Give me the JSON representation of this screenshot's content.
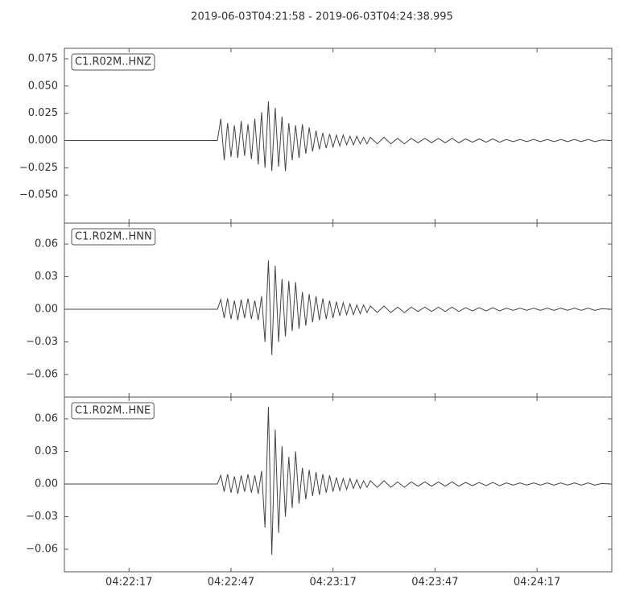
{
  "title": "2019-06-03T04:21:58  -  2019-06-03T04:24:38.995",
  "chart_data": [
    {
      "type": "line",
      "label": "C1.R02M..HNZ",
      "color": "#444444",
      "xlim": [
        "04:21:58",
        "04:24:38.995"
      ],
      "ylim": [
        -0.0757,
        0.0846
      ],
      "yticks": [
        {
          "value": -0.05,
          "label": "−0.050"
        },
        {
          "value": -0.025,
          "label": "−0.025"
        },
        {
          "value": 0,
          "label": "0.000"
        },
        {
          "value": 0.025,
          "label": "0.025"
        },
        {
          "value": 0.05,
          "label": "0.050"
        },
        {
          "value": 0.075,
          "label": "0.075"
        }
      ],
      "x": [
        "04:21:58",
        "04:22:43",
        "04:22:44",
        "04:22:45",
        "04:22:46",
        "04:22:47",
        "04:22:48",
        "04:22:49",
        "04:22:50",
        "04:22:51",
        "04:22:52",
        "04:22:53",
        "04:22:54",
        "04:22:55",
        "04:22:56",
        "04:22:57",
        "04:22:58",
        "04:22:59",
        "04:23:00",
        "04:23:01",
        "04:23:02",
        "04:23:03",
        "04:23:04",
        "04:23:05",
        "04:23:06",
        "04:23:07",
        "04:23:08",
        "04:23:09",
        "04:23:10",
        "04:23:11",
        "04:23:12",
        "04:23:13",
        "04:23:14",
        "04:23:15",
        "04:23:16",
        "04:23:17",
        "04:23:18",
        "04:23:19",
        "04:23:20",
        "04:23:21",
        "04:23:22",
        "04:23:23",
        "04:23:24",
        "04:23:25",
        "04:23:26",
        "04:23:27",
        "04:23:28",
        "04:23:30",
        "04:23:32",
        "04:23:34",
        "04:23:36",
        "04:23:38",
        "04:23:40",
        "04:23:42",
        "04:23:44",
        "04:23:46",
        "04:23:48",
        "04:23:50",
        "04:23:52",
        "04:23:54",
        "04:23:56",
        "04:23:58",
        "04:24:00",
        "04:24:02",
        "04:24:04",
        "04:24:06",
        "04:24:08",
        "04:24:10",
        "04:24:12",
        "04:24:14",
        "04:24:16",
        "04:24:18",
        "04:24:20",
        "04:24:22",
        "04:24:24",
        "04:24:26",
        "04:24:28",
        "04:24:30",
        "04:24:32",
        "04:24:34",
        "04:24:36",
        "04:24:38.995"
      ],
      "values": [
        0,
        0,
        0.02,
        -0.018,
        0.016,
        -0.015,
        0.014,
        -0.016,
        0.018,
        -0.014,
        0.015,
        -0.017,
        0.02,
        -0.022,
        0.026,
        -0.025,
        0.036,
        -0.028,
        0.03,
        -0.024,
        0.022,
        -0.028,
        0.016,
        -0.018,
        0.014,
        -0.016,
        0.015,
        -0.012,
        0.012,
        -0.01,
        0.009,
        -0.008,
        0.007,
        -0.007,
        0.006,
        -0.006,
        0.005,
        -0.005,
        0.005,
        -0.004,
        0.004,
        -0.004,
        0.004,
        -0.003,
        0.003,
        -0.003,
        0.003,
        -0.003,
        0.003,
        -0.003,
        0.002,
        -0.003,
        0.002,
        -0.002,
        0.002,
        -0.002,
        0.002,
        -0.002,
        0.002,
        -0.002,
        0.0015,
        -0.0015,
        0.0015,
        -0.0015,
        0.0015,
        -0.0015,
        0.001,
        -0.001,
        0.001,
        -0.001,
        0.001,
        -0.001,
        0.001,
        -0.001,
        0.001,
        -0.001,
        0.001,
        -0.001,
        0.001,
        -0.001,
        0.0005,
        0
      ]
    },
    {
      "type": "line",
      "label": "C1.R02M..HNN",
      "color": "#444444",
      "xlim": [
        "04:21:58",
        "04:24:38.995"
      ],
      "ylim": [
        -0.0807,
        0.0793
      ],
      "yticks": [
        {
          "value": -0.06,
          "label": "−0.06"
        },
        {
          "value": -0.03,
          "label": "−0.03"
        },
        {
          "value": 0,
          "label": "0.00"
        },
        {
          "value": 0.03,
          "label": "0.03"
        },
        {
          "value": 0.06,
          "label": "0.06"
        }
      ],
      "x": [
        "04:21:58",
        "04:22:43",
        "04:22:44",
        "04:22:45",
        "04:22:46",
        "04:22:47",
        "04:22:48",
        "04:22:49",
        "04:22:50",
        "04:22:51",
        "04:22:52",
        "04:22:53",
        "04:22:54",
        "04:22:55",
        "04:22:56",
        "04:22:57",
        "04:22:58",
        "04:22:59",
        "04:23:00",
        "04:23:01",
        "04:23:02",
        "04:23:03",
        "04:23:04",
        "04:23:05",
        "04:23:06",
        "04:23:07",
        "04:23:08",
        "04:23:09",
        "04:23:10",
        "04:23:11",
        "04:23:12",
        "04:23:13",
        "04:23:14",
        "04:23:15",
        "04:23:16",
        "04:23:17",
        "04:23:18",
        "04:23:19",
        "04:23:20",
        "04:23:21",
        "04:23:22",
        "04:23:23",
        "04:23:24",
        "04:23:25",
        "04:23:26",
        "04:23:27",
        "04:23:28",
        "04:23:30",
        "04:23:32",
        "04:23:34",
        "04:23:36",
        "04:23:38",
        "04:23:40",
        "04:23:42",
        "04:23:44",
        "04:23:46",
        "04:23:48",
        "04:23:50",
        "04:23:52",
        "04:23:54",
        "04:23:56",
        "04:23:58",
        "04:24:00",
        "04:24:02",
        "04:24:04",
        "04:24:06",
        "04:24:08",
        "04:24:10",
        "04:24:12",
        "04:24:14",
        "04:24:16",
        "04:24:18",
        "04:24:20",
        "04:24:22",
        "04:24:24",
        "04:24:26",
        "04:24:28",
        "04:24:30",
        "04:24:32",
        "04:24:34",
        "04:24:36",
        "04:24:38.995"
      ],
      "values": [
        0,
        0,
        0.009,
        -0.008,
        0.01,
        -0.009,
        0.008,
        -0.01,
        0.009,
        -0.008,
        0.01,
        -0.009,
        0.008,
        -0.01,
        0.012,
        -0.03,
        0.045,
        -0.042,
        0.04,
        -0.03,
        0.028,
        -0.025,
        0.026,
        -0.02,
        0.025,
        -0.018,
        0.016,
        -0.015,
        0.014,
        -0.012,
        0.012,
        -0.01,
        0.01,
        -0.009,
        0.008,
        -0.008,
        0.007,
        -0.006,
        0.006,
        -0.005,
        0.005,
        -0.005,
        0.004,
        -0.004,
        0.004,
        -0.003,
        0.003,
        -0.003,
        0.003,
        -0.003,
        0.002,
        -0.003,
        0.002,
        -0.002,
        0.002,
        -0.002,
        0.002,
        -0.002,
        0.002,
        -0.002,
        0.0015,
        -0.0015,
        0.0015,
        -0.0015,
        0.0015,
        -0.0015,
        0.001,
        -0.001,
        0.001,
        -0.001,
        0.001,
        -0.001,
        0.001,
        -0.001,
        0.001,
        -0.001,
        0.001,
        -0.001,
        0.001,
        -0.001,
        0.0005,
        0
      ]
    },
    {
      "type": "line",
      "label": "C1.R02M..HNE",
      "color": "#444444",
      "xlim": [
        "04:21:58",
        "04:24:38.995"
      ],
      "ylim": [
        -0.0807,
        0.08
      ],
      "yticks": [
        {
          "value": -0.06,
          "label": "−0.06"
        },
        {
          "value": -0.03,
          "label": "−0.03"
        },
        {
          "value": 0,
          "label": "0.00"
        },
        {
          "value": 0.03,
          "label": "0.03"
        },
        {
          "value": 0.06,
          "label": "0.06"
        }
      ],
      "xticks": [
        "04:22:17",
        "04:22:47",
        "04:23:17",
        "04:23:47",
        "04:24:17"
      ],
      "x": [
        "04:21:58",
        "04:22:43",
        "04:22:44",
        "04:22:45",
        "04:22:46",
        "04:22:47",
        "04:22:48",
        "04:22:49",
        "04:22:50",
        "04:22:51",
        "04:22:52",
        "04:22:53",
        "04:22:54",
        "04:22:55",
        "04:22:56",
        "04:22:57",
        "04:22:58",
        "04:22:59",
        "04:23:00",
        "04:23:01",
        "04:23:02",
        "04:23:03",
        "04:23:04",
        "04:23:05",
        "04:23:06",
        "04:23:07",
        "04:23:08",
        "04:23:09",
        "04:23:10",
        "04:23:11",
        "04:23:12",
        "04:23:13",
        "04:23:14",
        "04:23:15",
        "04:23:16",
        "04:23:17",
        "04:23:18",
        "04:23:19",
        "04:23:20",
        "04:23:21",
        "04:23:22",
        "04:23:23",
        "04:23:24",
        "04:23:25",
        "04:23:26",
        "04:23:27",
        "04:23:28",
        "04:23:30",
        "04:23:32",
        "04:23:34",
        "04:23:36",
        "04:23:38",
        "04:23:40",
        "04:23:42",
        "04:23:44",
        "04:23:46",
        "04:23:48",
        "04:23:50",
        "04:23:52",
        "04:23:54",
        "04:23:56",
        "04:23:58",
        "04:24:00",
        "04:24:02",
        "04:24:04",
        "04:24:06",
        "04:24:08",
        "04:24:10",
        "04:24:12",
        "04:24:14",
        "04:24:16",
        "04:24:18",
        "04:24:20",
        "04:24:22",
        "04:24:24",
        "04:24:26",
        "04:24:28",
        "04:24:30",
        "04:24:32",
        "04:24:34",
        "04:24:36",
        "04:24:38.995"
      ],
      "values": [
        0,
        0,
        0.008,
        -0.007,
        0.009,
        -0.008,
        0.007,
        -0.009,
        0.008,
        -0.007,
        0.009,
        -0.008,
        0.008,
        -0.009,
        0.012,
        -0.04,
        0.071,
        -0.065,
        0.05,
        -0.045,
        0.035,
        -0.03,
        0.025,
        -0.022,
        0.03,
        -0.018,
        0.015,
        -0.014,
        0.013,
        -0.011,
        0.011,
        -0.01,
        0.009,
        -0.008,
        0.008,
        -0.007,
        0.006,
        -0.006,
        0.005,
        -0.005,
        0.005,
        -0.004,
        0.004,
        -0.004,
        0.003,
        -0.003,
        0.003,
        -0.003,
        0.003,
        -0.003,
        0.002,
        -0.003,
        0.002,
        -0.002,
        0.002,
        -0.002,
        0.002,
        -0.002,
        0.002,
        -0.002,
        0.0015,
        -0.0015,
        0.0015,
        -0.0015,
        0.0015,
        -0.0015,
        0.001,
        -0.001,
        0.001,
        -0.001,
        0.001,
        -0.001,
        0.001,
        -0.001,
        0.001,
        -0.001,
        0.001,
        -0.001,
        0.001,
        -0.001,
        0.0005,
        0
      ]
    }
  ]
}
